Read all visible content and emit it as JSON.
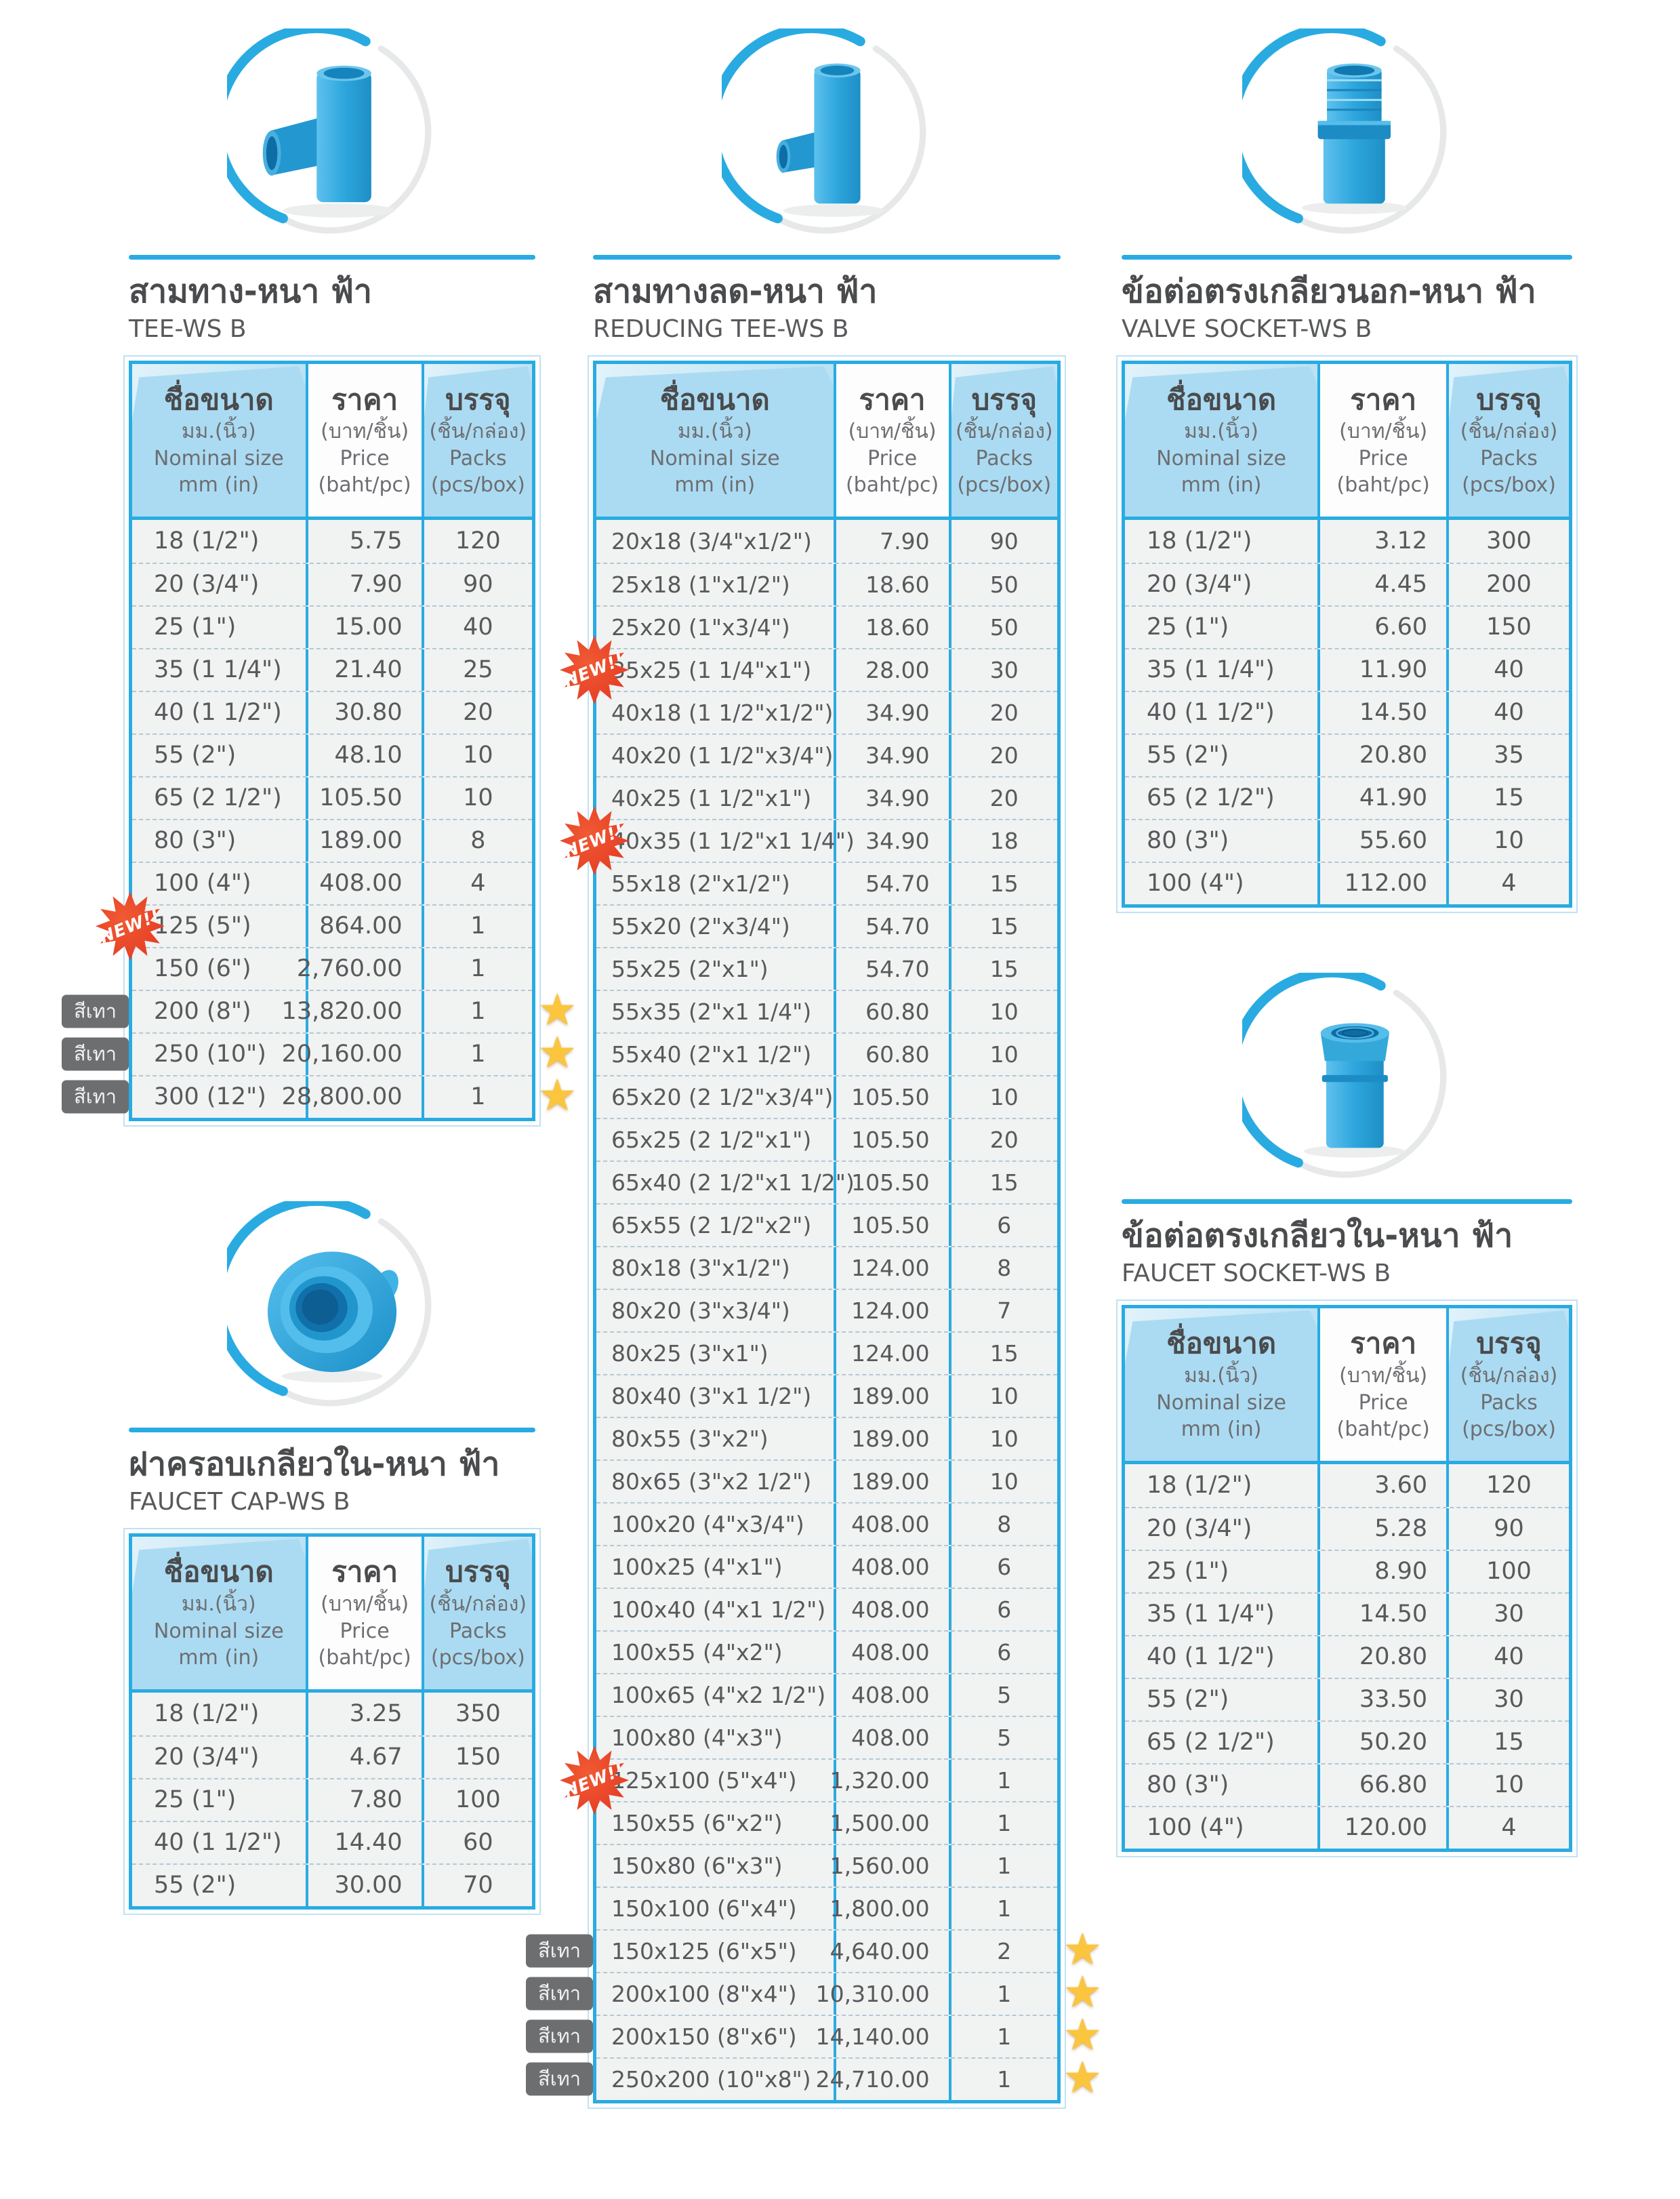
{
  "colors": {
    "accent_blue": "#29abe2",
    "header_fill": "#abdbf2",
    "row_fill": "#f1f2f2",
    "title_text": "#4a4b4d",
    "data_text": "#58595b",
    "new_badge_red": "#e8432b",
    "grey_badge": "#6d6e70",
    "star_yellow": "#fbc53d"
  },
  "badges": {
    "new": "NEW!!",
    "grey": "สีเทา"
  },
  "header": {
    "name": {
      "th": "ชื่อขนาด",
      "unit": "มม.(นิ้ว)",
      "en": "Nominal size",
      "unit_en": "mm (in)"
    },
    "price": {
      "th": "ราคา",
      "unit": "(บาท/ชิ้น)",
      "en": "Price",
      "unit_en": "(baht/pc)"
    },
    "packs": {
      "th": "บรรจุ",
      "unit": "(ชิ้น/กล่อง)",
      "en": "Packs",
      "unit_en": "(pcs/box)"
    }
  },
  "sections": {
    "tee": {
      "title_th": "สามทาง-หนา ฟ้า",
      "title_en": "TEE-WS B",
      "product_icon": "tee-fitting",
      "rows": [
        {
          "size": "18 (1/2\")",
          "price": "5.75",
          "packs": "120"
        },
        {
          "size": "20 (3/4\")",
          "price": "7.90",
          "packs": "90"
        },
        {
          "size": "25 (1\")",
          "price": "15.00",
          "packs": "40"
        },
        {
          "size": "35 (1 1/4\")",
          "price": "21.40",
          "packs": "25"
        },
        {
          "size": "40 (1 1/2\")",
          "price": "30.80",
          "packs": "20"
        },
        {
          "size": "55 (2\")",
          "price": "48.10",
          "packs": "10"
        },
        {
          "size": "65 (2 1/2\")",
          "price": "105.50",
          "packs": "10"
        },
        {
          "size": "80 (3\")",
          "price": "189.00",
          "packs": "8"
        },
        {
          "size": "100 (4\")",
          "price": "408.00",
          "packs": "4"
        },
        {
          "size": "125 (5\")",
          "price": "864.00",
          "packs": "1",
          "new": true
        },
        {
          "size": "150 (6\")",
          "price": "2,760.00",
          "packs": "1"
        },
        {
          "size": "200 (8\")",
          "price": "13,820.00",
          "packs": "1",
          "grey": true,
          "star": true
        },
        {
          "size": "250 (10\")",
          "price": "20,160.00",
          "packs": "1",
          "grey": true,
          "star": true
        },
        {
          "size": "300 (12\")",
          "price": "28,800.00",
          "packs": "1",
          "grey": true,
          "star": true
        }
      ]
    },
    "reducing_tee": {
      "title_th": "สามทางลด-หนา ฟ้า",
      "title_en": "REDUCING TEE-WS B",
      "product_icon": "reducing-tee-fitting",
      "rows": [
        {
          "size": "20x18 (3/4\"x1/2\")",
          "price": "7.90",
          "packs": "90"
        },
        {
          "size": "25x18 (1\"x1/2\")",
          "price": "18.60",
          "packs": "50"
        },
        {
          "size": "25x20 (1\"x3/4\")",
          "price": "18.60",
          "packs": "50"
        },
        {
          "size": "35x25 (1 1/4\"x1\")",
          "price": "28.00",
          "packs": "30",
          "new": true
        },
        {
          "size": "40x18 (1 1/2\"x1/2\")",
          "price": "34.90",
          "packs": "20"
        },
        {
          "size": "40x20 (1 1/2\"x3/4\")",
          "price": "34.90",
          "packs": "20"
        },
        {
          "size": "40x25 (1 1/2\"x1\")",
          "price": "34.90",
          "packs": "20"
        },
        {
          "size": "40x35 (1 1/2\"x1 1/4\")",
          "price": "34.90",
          "packs": "18",
          "new": true
        },
        {
          "size": "55x18 (2\"x1/2\")",
          "price": "54.70",
          "packs": "15"
        },
        {
          "size": "55x20 (2\"x3/4\")",
          "price": "54.70",
          "packs": "15"
        },
        {
          "size": "55x25 (2\"x1\")",
          "price": "54.70",
          "packs": "15"
        },
        {
          "size": "55x35 (2\"x1 1/4\")",
          "price": "60.80",
          "packs": "10"
        },
        {
          "size": "55x40 (2\"x1 1/2\")",
          "price": "60.80",
          "packs": "10"
        },
        {
          "size": "65x20 (2 1/2\"x3/4\")",
          "price": "105.50",
          "packs": "10"
        },
        {
          "size": "65x25 (2 1/2\"x1\")",
          "price": "105.50",
          "packs": "20"
        },
        {
          "size": "65x40 (2 1/2\"x1 1/2\")",
          "price": "105.50",
          "packs": "15"
        },
        {
          "size": "65x55 (2 1/2\"x2\")",
          "price": "105.50",
          "packs": "6"
        },
        {
          "size": "80x18 (3\"x1/2\")",
          "price": "124.00",
          "packs": "8"
        },
        {
          "size": "80x20 (3\"x3/4\")",
          "price": "124.00",
          "packs": "7"
        },
        {
          "size": "80x25 (3\"x1\")",
          "price": "124.00",
          "packs": "15"
        },
        {
          "size": "80x40 (3\"x1 1/2\")",
          "price": "189.00",
          "packs": "10"
        },
        {
          "size": "80x55 (3\"x2\")",
          "price": "189.00",
          "packs": "10"
        },
        {
          "size": "80x65 (3\"x2 1/2\")",
          "price": "189.00",
          "packs": "10"
        },
        {
          "size": "100x20 (4\"x3/4\")",
          "price": "408.00",
          "packs": "8"
        },
        {
          "size": "100x25 (4\"x1\")",
          "price": "408.00",
          "packs": "6"
        },
        {
          "size": "100x40 (4\"x1 1/2\")",
          "price": "408.00",
          "packs": "6"
        },
        {
          "size": "100x55 (4\"x2\")",
          "price": "408.00",
          "packs": "6"
        },
        {
          "size": "100x65 (4\"x2 1/2\")",
          "price": "408.00",
          "packs": "5"
        },
        {
          "size": "100x80 (4\"x3\")",
          "price": "408.00",
          "packs": "5"
        },
        {
          "size": "125x100 (5\"x4\")",
          "price": "1,320.00",
          "packs": "1",
          "new": true
        },
        {
          "size": "150x55 (6\"x2\")",
          "price": "1,500.00",
          "packs": "1"
        },
        {
          "size": "150x80 (6\"x3\")",
          "price": "1,560.00",
          "packs": "1"
        },
        {
          "size": "150x100 (6\"x4\")",
          "price": "1,800.00",
          "packs": "1"
        },
        {
          "size": "150x125 (6\"x5\")",
          "price": "4,640.00",
          "packs": "2",
          "grey": true,
          "star": true
        },
        {
          "size": "200x100 (8\"x4\")",
          "price": "10,310.00",
          "packs": "1",
          "grey": true,
          "star": true
        },
        {
          "size": "200x150 (8\"x6\")",
          "price": "14,140.00",
          "packs": "1",
          "grey": true,
          "star": true
        },
        {
          "size": "250x200 (10\"x8\")",
          "price": "24,710.00",
          "packs": "1",
          "grey": true,
          "star": true
        }
      ]
    },
    "valve_socket": {
      "title_th": "ข้อต่อตรงเกลียวนอก-หนา ฟ้า",
      "title_en": "VALVE SOCKET-WS B",
      "product_icon": "valve-socket-fitting",
      "rows": [
        {
          "size": "18 (1/2\")",
          "price": "3.12",
          "packs": "300"
        },
        {
          "size": "20 (3/4\")",
          "price": "4.45",
          "packs": "200"
        },
        {
          "size": "25 (1\")",
          "price": "6.60",
          "packs": "150"
        },
        {
          "size": "35 (1 1/4\")",
          "price": "11.90",
          "packs": "40"
        },
        {
          "size": "40 (1 1/2\")",
          "price": "14.50",
          "packs": "40"
        },
        {
          "size": "55 (2\")",
          "price": "20.80",
          "packs": "35"
        },
        {
          "size": "65 (2 1/2\")",
          "price": "41.90",
          "packs": "15"
        },
        {
          "size": "80 (3\")",
          "price": "55.60",
          "packs": "10"
        },
        {
          "size": "100 (4\")",
          "price": "112.00",
          "packs": "4"
        }
      ]
    },
    "faucet_cap": {
      "title_th": "ฝาครอบเกลียวใน-หนา ฟ้า",
      "title_en": "FAUCET CAP-WS B",
      "product_icon": "faucet-cap-fitting",
      "rows": [
        {
          "size": "18 (1/2\")",
          "price": "3.25",
          "packs": "350"
        },
        {
          "size": "20 (3/4\")",
          "price": "4.67",
          "packs": "150"
        },
        {
          "size": "25 (1\")",
          "price": "7.80",
          "packs": "100"
        },
        {
          "size": "40 (1 1/2\")",
          "price": "14.40",
          "packs": "60"
        },
        {
          "size": "55 (2\")",
          "price": "30.00",
          "packs": "70"
        }
      ]
    },
    "faucet_socket": {
      "title_th": "ข้อต่อตรงเกลียวใน-หนา ฟ้า",
      "title_en": "FAUCET SOCKET-WS B",
      "product_icon": "faucet-socket-fitting",
      "rows": [
        {
          "size": "18 (1/2\")",
          "price": "3.60",
          "packs": "120"
        },
        {
          "size": "20 (3/4\")",
          "price": "5.28",
          "packs": "90"
        },
        {
          "size": "25 (1\")",
          "price": "8.90",
          "packs": "100"
        },
        {
          "size": "35 (1 1/4\")",
          "price": "14.50",
          "packs": "30"
        },
        {
          "size": "40 (1 1/2\")",
          "price": "20.80",
          "packs": "40"
        },
        {
          "size": "55 (2\")",
          "price": "33.50",
          "packs": "30"
        },
        {
          "size": "65 (2 1/2\")",
          "price": "50.20",
          "packs": "15"
        },
        {
          "size": "80 (3\")",
          "price": "66.80",
          "packs": "10"
        },
        {
          "size": "100 (4\")",
          "price": "120.00",
          "packs": "4"
        }
      ]
    }
  }
}
